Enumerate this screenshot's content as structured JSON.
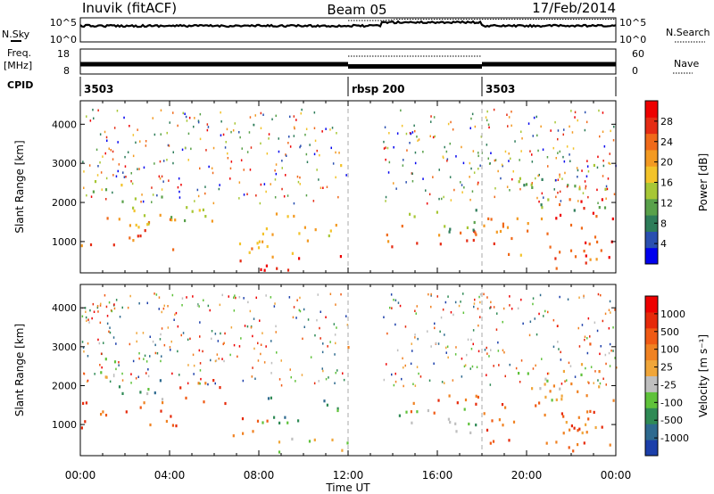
{
  "header": {
    "station": "Inuvik (fitACF)",
    "beam": "Beam 05",
    "date": "17/Feb/2014"
  },
  "panel_labels": {
    "nsky": "N.Sky",
    "freq": "Freq.",
    "freq_unit": "[MHz]",
    "cpid": "CPID",
    "nsearch": "N.Search",
    "nave": "Nave",
    "nsky_ticks": [
      "10^5",
      "10^0"
    ],
    "nsearch_ticks": [
      "10^5",
      "10^0"
    ],
    "freq_ticks": [
      "18",
      "8"
    ],
    "nave_ticks": [
      "60",
      "0"
    ]
  },
  "cpid_segments": [
    {
      "label": "3503",
      "start_hour": 0
    },
    {
      "label": "rbsp 200",
      "start_hour": 12
    },
    {
      "label": "3503",
      "start_hour": 18
    }
  ],
  "x_axis": {
    "label": "Time UT",
    "ticks": [
      "00:00",
      "04:00",
      "08:00",
      "12:00",
      "16:00",
      "20:00",
      "00:00"
    ],
    "range_hours": [
      0,
      24
    ]
  },
  "chart_data": [
    {
      "type": "heatmap",
      "parameter": "Power",
      "ylabel": "Slant Range [km]",
      "y_ticks": [
        "1000",
        "2000",
        "3000",
        "4000"
      ],
      "ylim": [
        200,
        4600
      ],
      "colorbar": {
        "label": "Power [dB]",
        "tick_labels": [
          "28",
          "24",
          "20",
          "16",
          "12",
          "8",
          "4"
        ],
        "colors": [
          "#0000ee",
          "#2a4fb0",
          "#2e7d5a",
          "#59a14a",
          "#a7c736",
          "#f3c32a",
          "#f39a22",
          "#f06a1a",
          "#e52c14",
          "#ee0000"
        ]
      },
      "patches": [
        {
          "t0": 0.0,
          "t1": 4.6,
          "r0": 700,
          "r1": 1600,
          "level": 0.72
        },
        {
          "t0": 0.3,
          "t1": 2.0,
          "r0": 2000,
          "r1": 2700,
          "level": 0.45
        },
        {
          "t0": 1.5,
          "t1": 6.5,
          "r0": 1400,
          "r1": 2200,
          "level": 0.5
        },
        {
          "t0": 6.5,
          "t1": 8.5,
          "r0": 700,
          "r1": 1400,
          "level": 0.55
        },
        {
          "t0": 7.0,
          "t1": 12.0,
          "r0": 250,
          "r1": 650,
          "level": 0.95
        },
        {
          "t0": 7.2,
          "t1": 9.5,
          "r0": 400,
          "r1": 900,
          "level": 0.65
        },
        {
          "t0": 8.0,
          "t1": 11.5,
          "r0": 1000,
          "r1": 1800,
          "level": 0.6
        },
        {
          "t0": 11.6,
          "t1": 12.0,
          "r0": 2900,
          "r1": 3300,
          "level": 0.45
        },
        {
          "t0": 13.7,
          "t1": 18.0,
          "r0": 700,
          "r1": 1400,
          "level": 0.78
        },
        {
          "t0": 14.0,
          "t1": 18.0,
          "r0": 1200,
          "r1": 1800,
          "level": 0.35
        },
        {
          "t0": 18.0,
          "t1": 23.2,
          "r0": 500,
          "r1": 1600,
          "level": 0.7
        },
        {
          "t0": 21.0,
          "t1": 24.0,
          "r0": 300,
          "r1": 2100,
          "level": 0.85
        },
        {
          "t0": 19.5,
          "t1": 23.5,
          "r0": 1600,
          "r1": 2600,
          "level": 0.35
        },
        {
          "t0": 22.5,
          "t1": 23.2,
          "r0": 2700,
          "r1": 3100,
          "level": 0.6
        }
      ]
    },
    {
      "type": "heatmap",
      "parameter": "Velocity",
      "ylabel": "Slant Range [km]",
      "y_ticks": [
        "1000",
        "2000",
        "3000",
        "4000"
      ],
      "ylim": [
        200,
        4600
      ],
      "colorbar": {
        "label": "Velocity [m s⁻¹]",
        "tick_labels": [
          "1000",
          "500",
          "100",
          "25",
          "-25",
          "-100",
          "-500",
          "-1000"
        ],
        "colors": [
          "#1c3faa",
          "#2e6a8f",
          "#2f8a55",
          "#5fc23a",
          "#bfbfbf",
          "#f0a63a",
          "#f08222",
          "#f05a14",
          "#e62a0a",
          "#ee0000"
        ]
      },
      "patches": [
        {
          "t0": 0.0,
          "t1": 4.6,
          "r0": 700,
          "r1": 1600,
          "level": 0.75
        },
        {
          "t0": 0.3,
          "t1": 2.0,
          "r0": 2000,
          "r1": 2700,
          "level": 0.45
        },
        {
          "t0": 1.5,
          "t1": 4.0,
          "r0": 1400,
          "r1": 2200,
          "level": 0.3
        },
        {
          "t0": 4.0,
          "t1": 6.5,
          "r0": 1400,
          "r1": 2200,
          "level": 0.75
        },
        {
          "t0": 6.5,
          "t1": 8.5,
          "r0": 700,
          "r1": 1400,
          "level": 0.7
        },
        {
          "t0": 7.0,
          "t1": 12.0,
          "r0": 250,
          "r1": 650,
          "level": 0.45
        },
        {
          "t0": 8.0,
          "t1": 11.5,
          "r0": 1000,
          "r1": 1800,
          "level": 0.25
        },
        {
          "t0": 11.6,
          "t1": 12.0,
          "r0": 2900,
          "r1": 3300,
          "level": 0.75
        },
        {
          "t0": 13.7,
          "t1": 18.0,
          "r0": 700,
          "r1": 1400,
          "level": 0.35
        },
        {
          "t0": 14.0,
          "t1": 18.0,
          "r0": 1200,
          "r1": 1800,
          "level": 0.75
        },
        {
          "t0": 18.0,
          "t1": 23.2,
          "r0": 500,
          "r1": 1600,
          "level": 0.72
        },
        {
          "t0": 21.0,
          "t1": 24.0,
          "r0": 300,
          "r1": 2100,
          "level": 0.72
        },
        {
          "t0": 19.5,
          "t1": 23.5,
          "r0": 1600,
          "r1": 2600,
          "level": 0.47
        },
        {
          "t0": 22.5,
          "t1": 23.2,
          "r0": 2700,
          "r1": 3100,
          "level": 0.78
        }
      ]
    }
  ]
}
